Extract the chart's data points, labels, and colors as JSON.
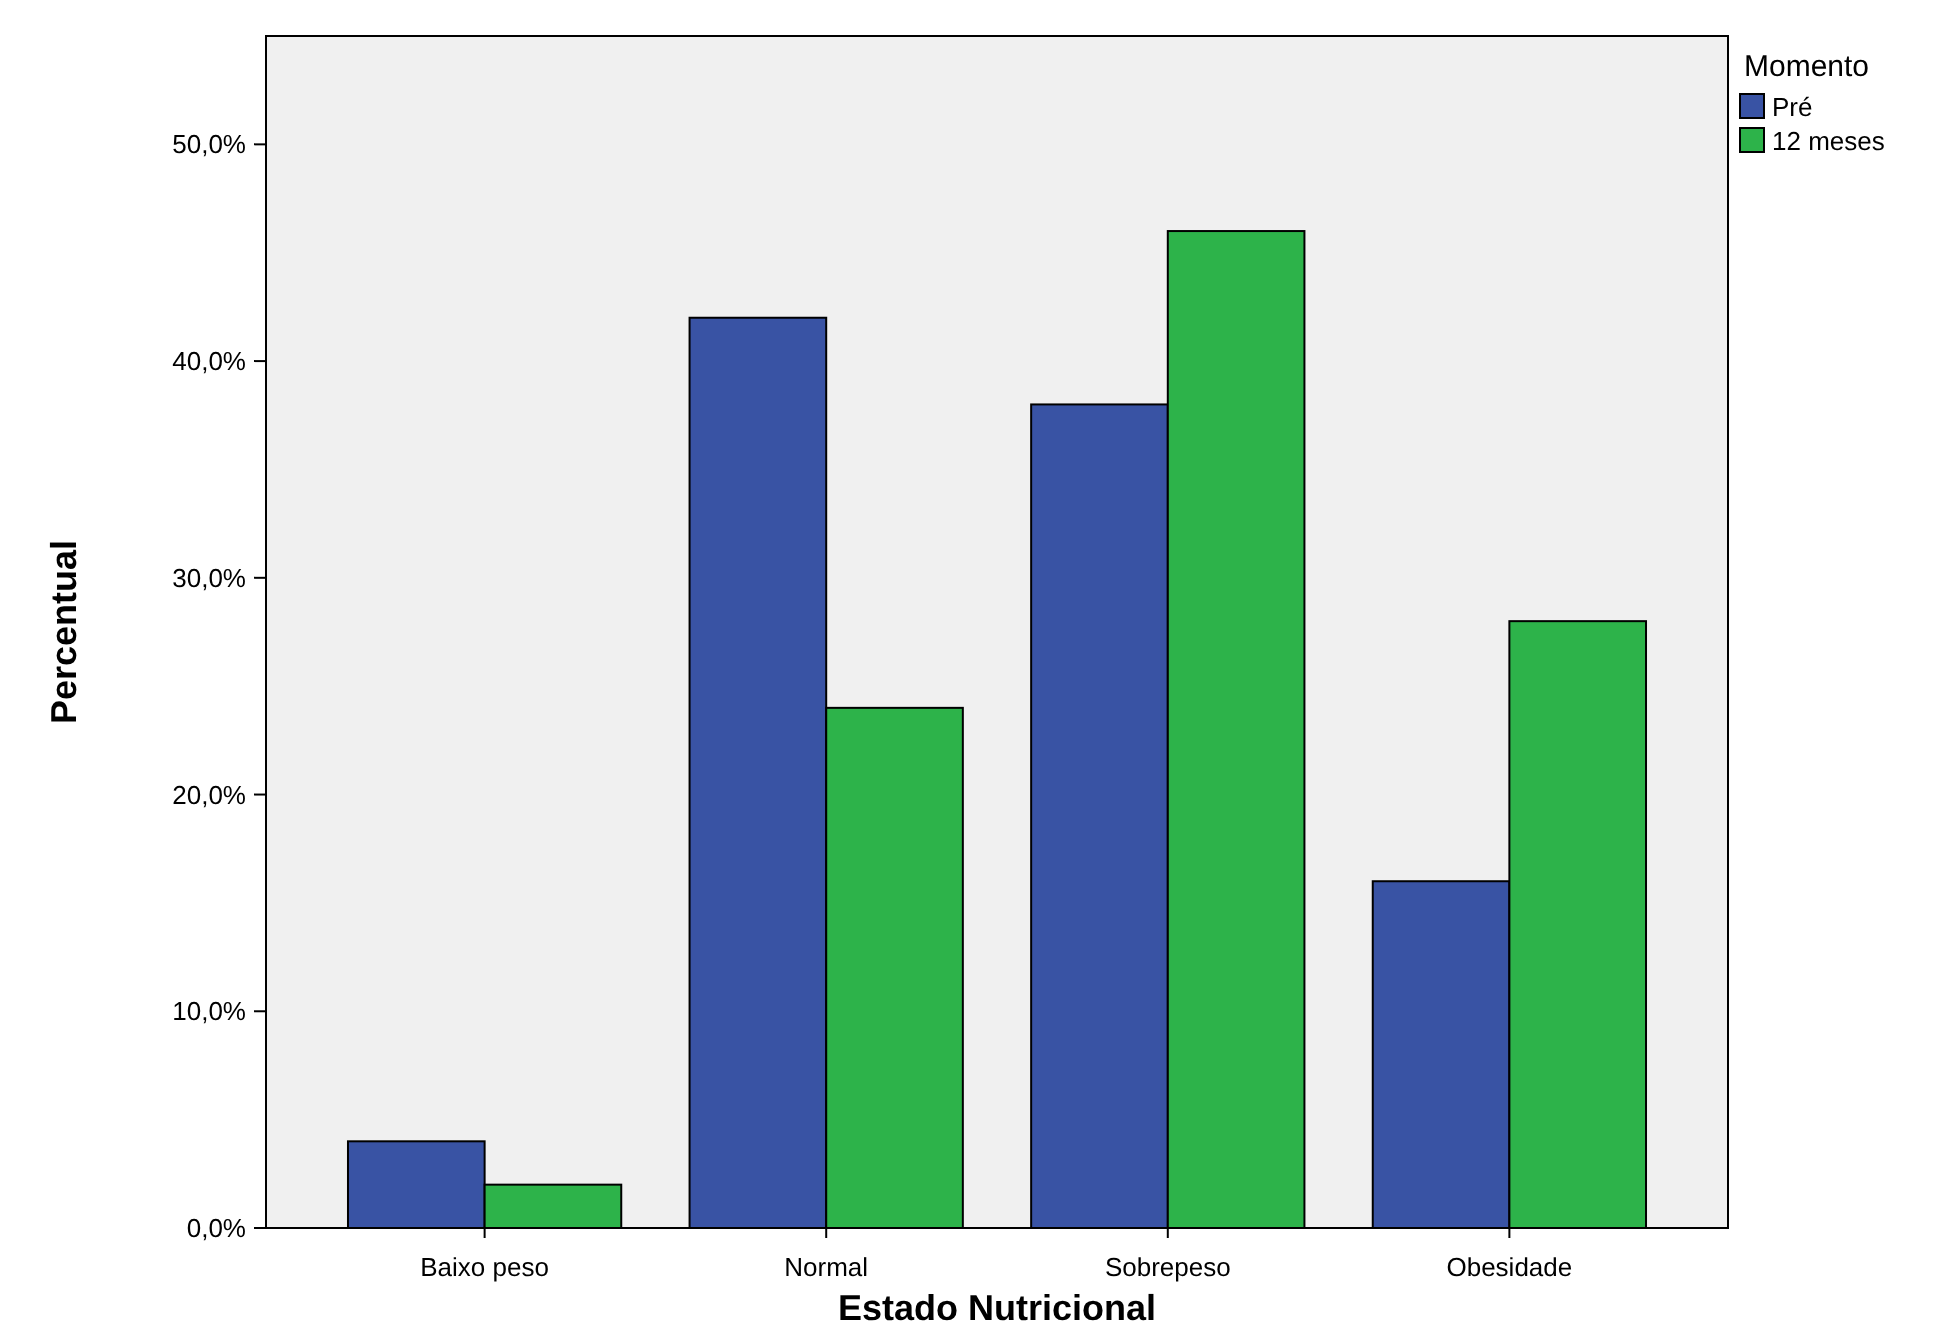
{
  "chart_data": {
    "type": "bar",
    "xlabel": "Estado Nutricional",
    "ylabel": "Percentual",
    "legend_title": "Momento",
    "legend": "top right",
    "categories": [
      "Baixo peso",
      "Normal",
      "Sobrepeso",
      "Obesidade"
    ],
    "series": [
      {
        "name": "Pré",
        "color": "#3953a4",
        "values": [
          4,
          42,
          38,
          16
        ]
      },
      {
        "name": "12 meses",
        "color": "#2db34a",
        "values": [
          2,
          24,
          46,
          28
        ]
      }
    ],
    "ylim": [
      0,
      55
    ],
    "yticks": [
      {
        "value": 0,
        "label": "0,0%"
      },
      {
        "value": 10,
        "label": "10,0%"
      },
      {
        "value": 20,
        "label": "20,0%"
      },
      {
        "value": 30,
        "label": "30,0%"
      },
      {
        "value": 40,
        "label": "40,0%"
      },
      {
        "value": 50,
        "label": "50,0%"
      }
    ]
  }
}
